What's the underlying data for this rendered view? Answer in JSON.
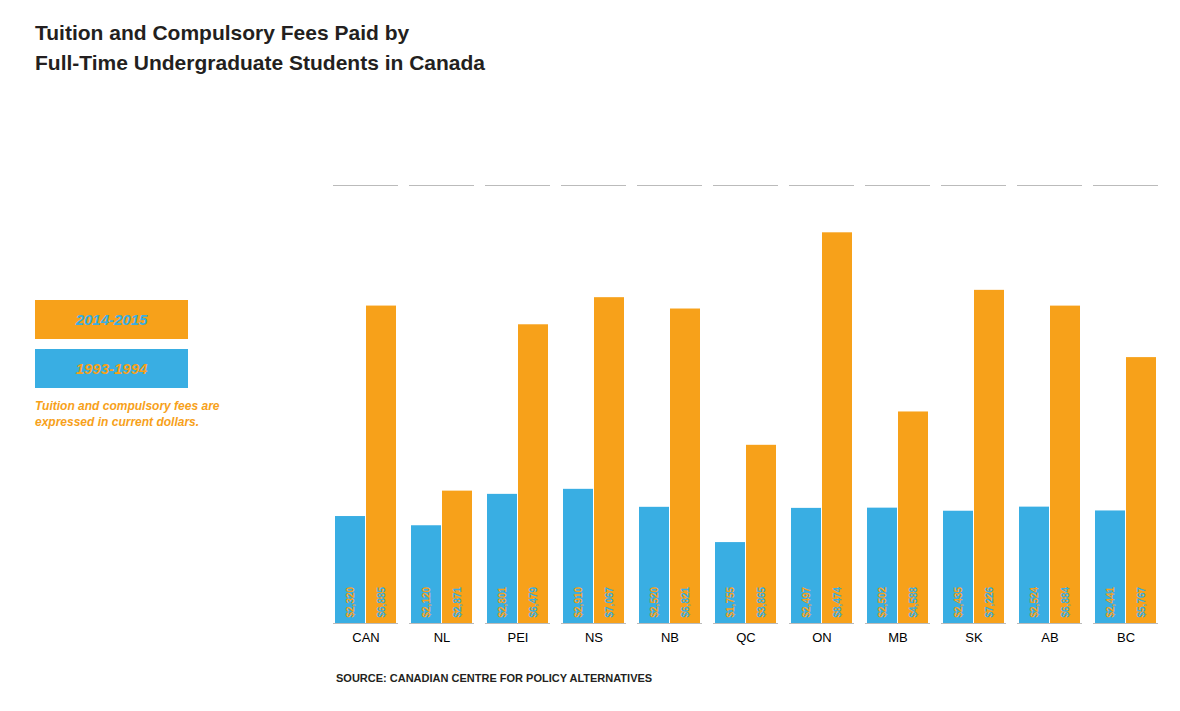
{
  "chart_data": {
    "type": "bar",
    "title": "Tuition and Compulsory Fees Paid by\nFull-Time Undergraduate Students in Canada",
    "categories": [
      "CAN",
      "NL",
      "PEI",
      "NS",
      "NB",
      "QC",
      "ON",
      "MB",
      "SK",
      "AB",
      "BC"
    ],
    "series": [
      {
        "name": "1993-1994",
        "color": "#39AEE3",
        "values": [
          2320,
          2120,
          2801,
          2910,
          2520,
          1755,
          2497,
          2502,
          2435,
          2524,
          2441
        ],
        "value_labels": [
          "$2,320",
          "$2,120",
          "$2,801",
          "$2,910",
          "$2,520",
          "$1,755",
          "$2,497",
          "$2,502",
          "$2,435",
          "$2,524",
          "$2,441"
        ]
      },
      {
        "name": "2014-2015",
        "color": "#F7A11A",
        "values": [
          6885,
          2871,
          6479,
          7067,
          6821,
          3865,
          8474,
          4588,
          7226,
          6884,
          5767
        ],
        "value_labels": [
          "$6,885",
          "$2,871",
          "$6,479",
          "$7,067",
          "$6,821",
          "$3,865",
          "$8,474",
          "$4,588",
          "$7,226",
          "$6,884",
          "$5,767"
        ]
      }
    ],
    "ylim": [
      0,
      9500
    ],
    "grid": false,
    "legend": "left",
    "data_labels": true,
    "tick_labels": "x",
    "annotations": [
      "Tuition and compulsory fees are\nexpressed in current dollars.",
      "SOURCE: CANADIAN CENTRE FOR POLICY ALTERNATIVES"
    ]
  }
}
